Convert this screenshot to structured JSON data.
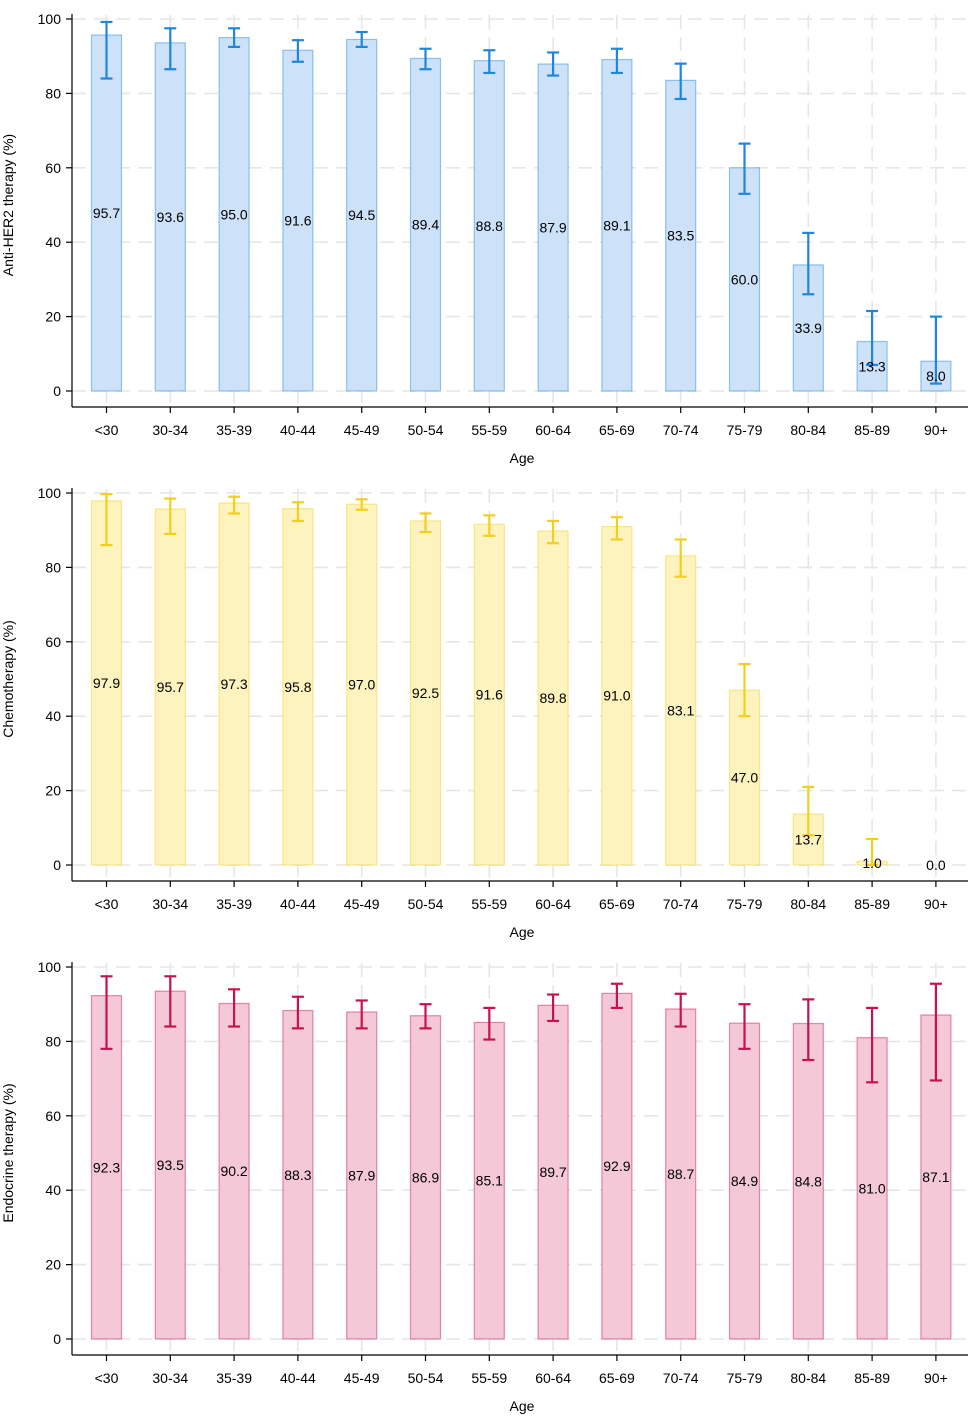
{
  "chart_data": [
    {
      "type": "bar",
      "xlabel": "Age",
      "ylabel": "Anti-HER2 therapy (%)",
      "ylim": [
        0,
        100
      ],
      "yticks": [
        0,
        20,
        40,
        60,
        80,
        100
      ],
      "grid": true,
      "color": "#1f86dc",
      "fill": "#cde2f9",
      "categories": [
        "<30",
        "30-34",
        "35-39",
        "40-44",
        "45-49",
        "50-54",
        "55-59",
        "60-64",
        "65-69",
        "70-74",
        "75-79",
        "80-84",
        "85-89",
        "90+"
      ],
      "values": [
        95.7,
        93.6,
        95.0,
        91.6,
        94.5,
        89.4,
        88.8,
        87.9,
        89.1,
        83.5,
        60.0,
        33.9,
        13.3,
        8.0
      ],
      "value_labels": [
        "95.7",
        "93.6",
        "95.0",
        "91.6",
        "94.5",
        "89.4",
        "88.8",
        "87.9",
        "89.1",
        "83.5",
        "60.0",
        "33.9",
        "13.3",
        "8.0"
      ],
      "ci_lower": [
        84,
        86.5,
        92.5,
        88.5,
        92.5,
        86.5,
        85.5,
        84.8,
        85.5,
        78.5,
        53,
        26,
        7,
        2
      ],
      "ci_upper": [
        99.2,
        97.5,
        97.5,
        94.3,
        96.5,
        92,
        91.6,
        91,
        92,
        88,
        66.5,
        42.5,
        21.5,
        20
      ]
    },
    {
      "type": "bar",
      "xlabel": "Age",
      "ylabel": "Chemotherapy (%)",
      "ylim": [
        0,
        100
      ],
      "yticks": [
        0,
        20,
        40,
        60,
        80,
        100
      ],
      "grid": true,
      "color": "#f3cf1c",
      "fill": "#fdf3be",
      "categories": [
        "<30",
        "30-34",
        "35-39",
        "40-44",
        "45-49",
        "50-54",
        "55-59",
        "60-64",
        "65-69",
        "70-74",
        "75-79",
        "80-84",
        "85-89",
        "90+"
      ],
      "values": [
        97.9,
        95.7,
        97.3,
        95.8,
        97.0,
        92.5,
        91.6,
        89.8,
        91.0,
        83.1,
        47.0,
        13.7,
        1.0,
        0.0
      ],
      "value_labels": [
        "97.9",
        "95.7",
        "97.3",
        "95.8",
        "97.0",
        "92.5",
        "91.6",
        "89.8",
        "91.0",
        "83.1",
        "47.0",
        "13.7",
        "1.0",
        "0.0"
      ],
      "ci_lower": [
        86,
        89,
        94.5,
        92.5,
        95.5,
        89.5,
        88.5,
        86.5,
        87.5,
        77.5,
        40,
        8,
        0,
        0
      ],
      "ci_upper": [
        99.7,
        98.5,
        99,
        97.5,
        98.3,
        94.5,
        94,
        92.5,
        93.5,
        87.5,
        54,
        21,
        7,
        0
      ]
    },
    {
      "type": "bar",
      "xlabel": "Age",
      "ylabel": "Endocrine therapy (%)",
      "ylim": [
        0,
        100
      ],
      "yticks": [
        0,
        20,
        40,
        60,
        80,
        100
      ],
      "grid": true,
      "color": "#c8124c",
      "fill": "#f4c8d7",
      "categories": [
        "<30",
        "30-34",
        "35-39",
        "40-44",
        "45-49",
        "50-54",
        "55-59",
        "60-64",
        "65-69",
        "70-74",
        "75-79",
        "80-84",
        "85-89",
        "90+"
      ],
      "values": [
        92.3,
        93.5,
        90.2,
        88.3,
        87.9,
        86.9,
        85.1,
        89.7,
        92.9,
        88.7,
        84.9,
        84.8,
        81.0,
        87.1
      ],
      "value_labels": [
        "92.3",
        "93.5",
        "90.2",
        "88.3",
        "87.9",
        "86.9",
        "85.1",
        "89.7",
        "92.9",
        "88.7",
        "84.9",
        "84.8",
        "81.0",
        "87.1"
      ],
      "ci_lower": [
        78,
        84,
        84,
        83.5,
        83.5,
        83.5,
        80.5,
        85.5,
        89,
        84,
        78,
        75,
        69,
        69.5
      ],
      "ci_upper": [
        97.5,
        97.5,
        94,
        92,
        91,
        90,
        89,
        92.6,
        95.5,
        92.8,
        90,
        91.3,
        89,
        95.5
      ]
    }
  ]
}
